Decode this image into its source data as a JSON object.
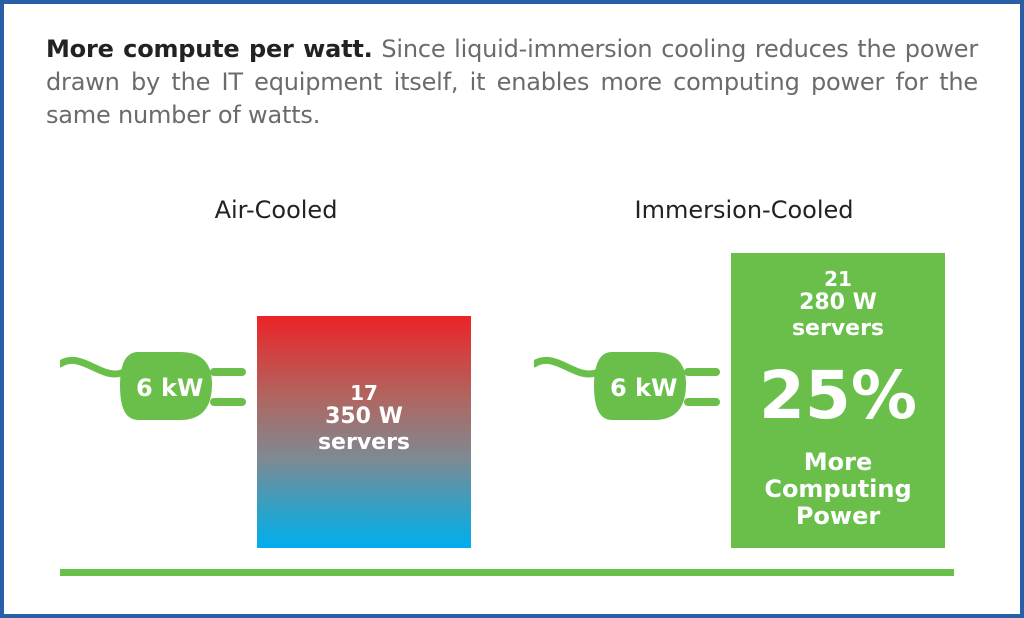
{
  "intro": {
    "lead": "More compute per watt.",
    "text": " Since liquid-immersion cooling reduces the power drawn by the IT equipment itself, it enables more computing power for the same number of watts."
  },
  "air_cooled": {
    "heading": "Air-Cooled",
    "plug_label": "6 kW",
    "box_lines": [
      "17",
      "350 W",
      "servers"
    ]
  },
  "immersion_cooled": {
    "heading": "Immersion-Cooled",
    "plug_label": "6 kW",
    "box_lines": [
      "21",
      "280 W",
      "servers"
    ],
    "percent": "25%",
    "caption_lines": [
      "More",
      "Computing",
      "Power"
    ]
  },
  "colors": {
    "frame": "#2a5fa8",
    "green": "#6abf4b",
    "hot_red": "#ec2327",
    "cool_blue": "#00aeef"
  }
}
